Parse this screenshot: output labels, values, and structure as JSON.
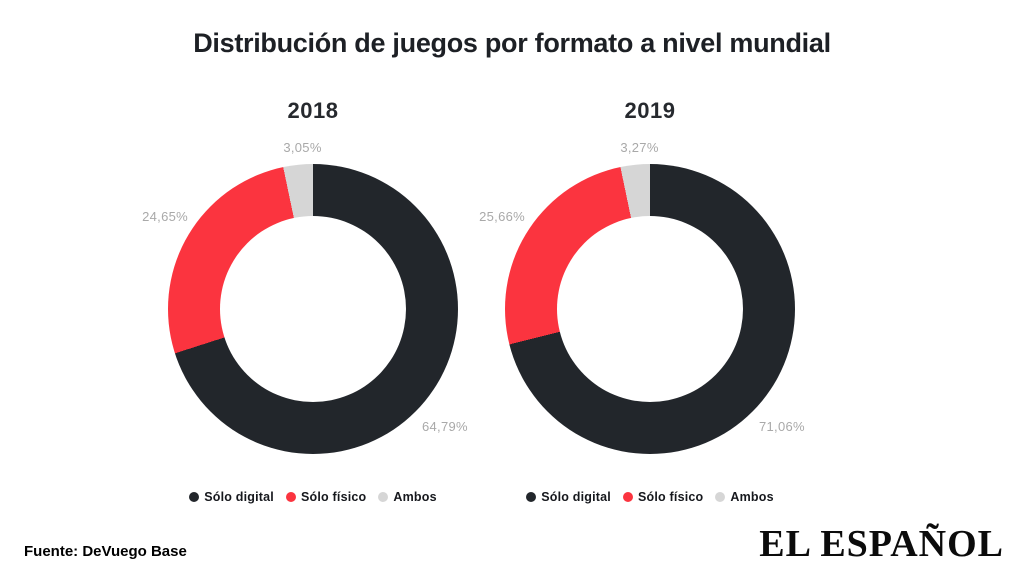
{
  "title": "Distribución de juegos por formato a nivel mundial",
  "source": "Fuente: DeVuego Base",
  "brand": "EL ESPAÑOL",
  "colors": {
    "digital": "#22262b",
    "fisico": "#fb343f",
    "ambos": "#d6d6d6",
    "label_text": "#a9a9a9"
  },
  "legend": {
    "digital": "Sólo digital",
    "fisico": "Sólo físico",
    "ambos": "Ambos"
  },
  "chart_data": [
    {
      "type": "pie",
      "title": "2018",
      "categories": [
        "Sólo digital",
        "Sólo físico",
        "Ambos"
      ],
      "values": [
        64.79,
        24.65,
        3.05
      ],
      "value_labels": {
        "digital": "64,79%",
        "fisico": "24,65%",
        "ambos": "3,05%"
      },
      "legend_position": "bottom",
      "donut": true,
      "start_angle_deg": 0,
      "direction": "clockwise"
    },
    {
      "type": "pie",
      "title": "2019",
      "categories": [
        "Sólo digital",
        "Sólo físico",
        "Ambos"
      ],
      "values": [
        71.06,
        25.66,
        3.27
      ],
      "value_labels": {
        "digital": "71,06%",
        "fisico": "25,66%",
        "ambos": "3,27%"
      },
      "legend_position": "bottom",
      "donut": true,
      "start_angle_deg": 0,
      "direction": "clockwise"
    }
  ]
}
